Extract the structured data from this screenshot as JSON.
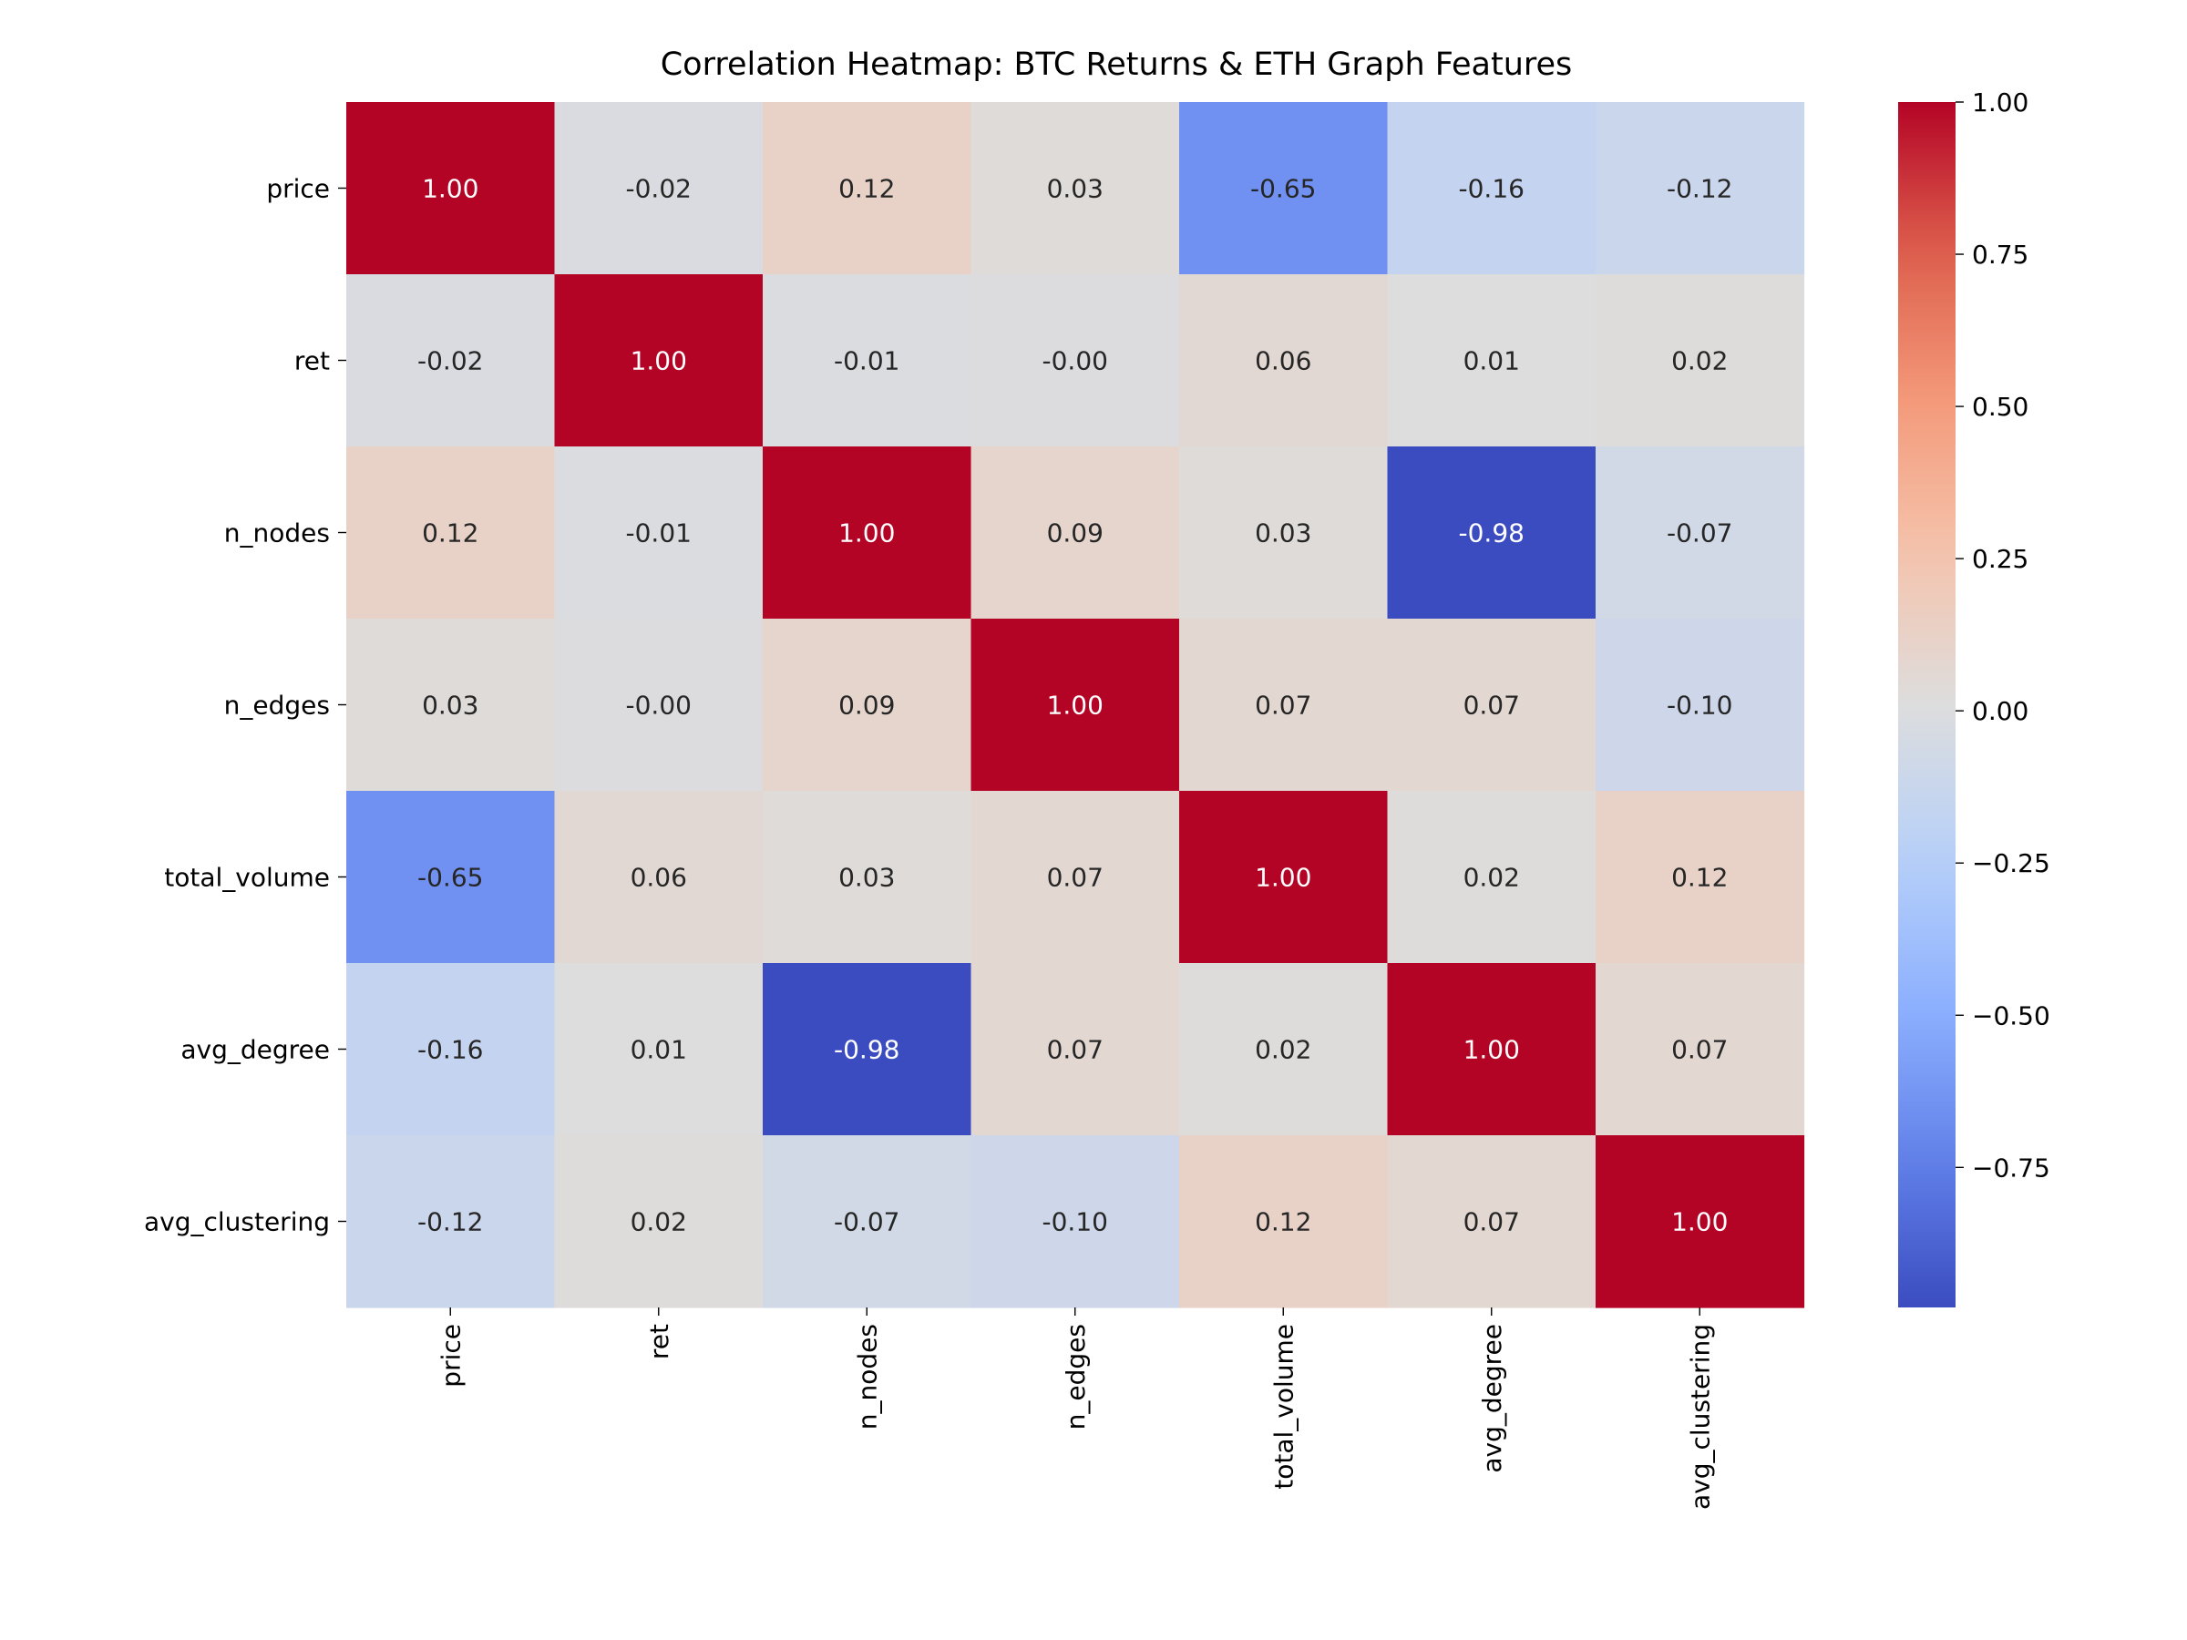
{
  "chart_data": {
    "type": "heatmap",
    "title": "Correlation Heatmap: BTC Returns & ETH Graph Features",
    "rows": [
      "price",
      "ret",
      "n_nodes",
      "n_edges",
      "total_volume",
      "avg_degree",
      "avg_clustering"
    ],
    "columns": [
      "price",
      "ret",
      "n_nodes",
      "n_edges",
      "total_volume",
      "avg_degree",
      "avg_clustering"
    ],
    "values": [
      [
        1.0,
        -0.02,
        0.12,
        0.03,
        -0.65,
        -0.16,
        -0.12
      ],
      [
        -0.02,
        1.0,
        -0.01,
        -0.0,
        0.06,
        0.01,
        0.02
      ],
      [
        0.12,
        -0.01,
        1.0,
        0.09,
        0.03,
        -0.98,
        -0.07
      ],
      [
        0.03,
        -0.0,
        0.09,
        1.0,
        0.07,
        0.07,
        -0.1
      ],
      [
        -0.65,
        0.06,
        0.03,
        0.07,
        1.0,
        0.02,
        0.12
      ],
      [
        -0.16,
        0.01,
        -0.98,
        0.07,
        0.02,
        1.0,
        0.07
      ],
      [
        -0.12,
        0.02,
        -0.07,
        -0.1,
        0.12,
        0.07,
        1.0
      ]
    ],
    "value_format": "2 decimals",
    "colormap": "coolwarm",
    "colorbar": {
      "min": -0.98,
      "max": 1.0,
      "ticks": [
        1.0,
        0.75,
        0.5,
        0.25,
        0.0,
        -0.25,
        -0.5,
        -0.75
      ],
      "tick_labels": [
        "1.00",
        "0.75",
        "0.50",
        "0.25",
        "0.00",
        "−0.25",
        "−0.50",
        "−0.75"
      ],
      "placement": "right"
    },
    "column_label_rotation": "vertical",
    "grid": false
  }
}
